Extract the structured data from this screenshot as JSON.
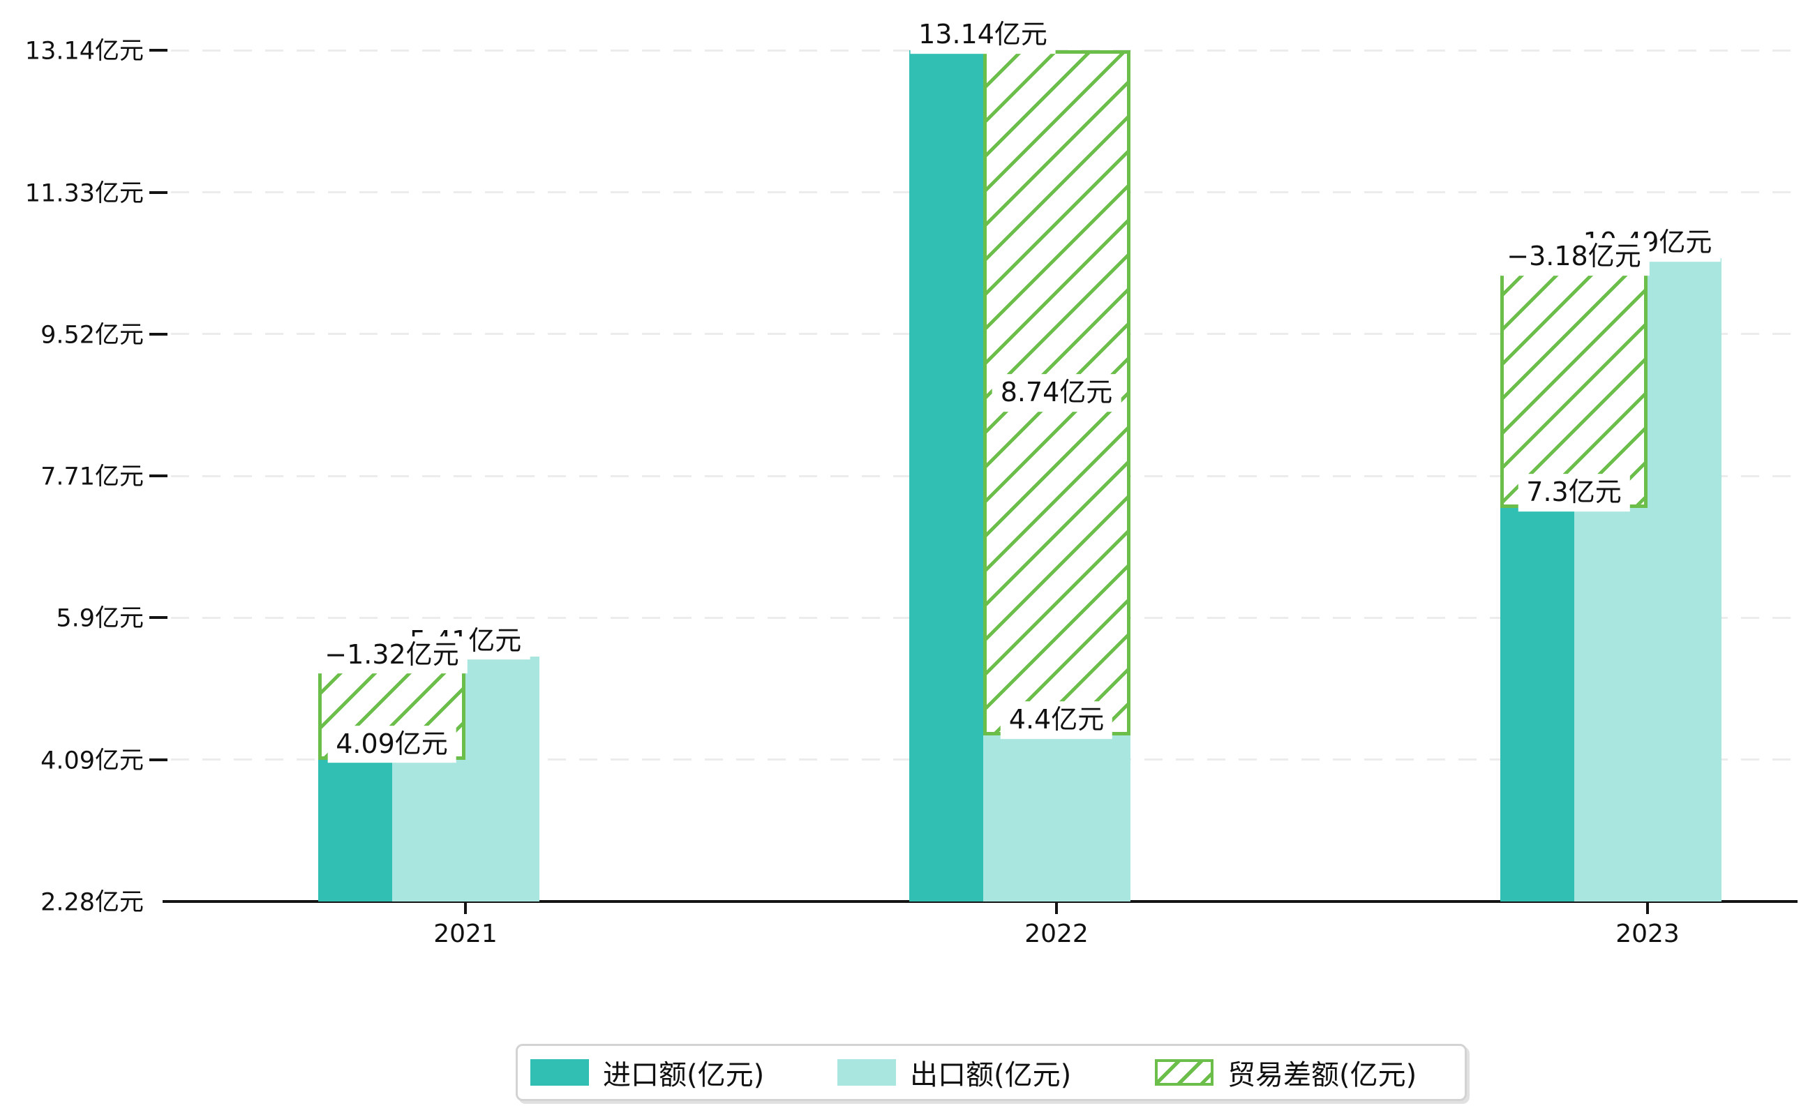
{
  "chart_data": {
    "type": "bar",
    "title": "",
    "xlabel": "",
    "ylabel": "",
    "unit": "亿元",
    "categories": [
      "2021",
      "2022",
      "2023"
    ],
    "series": [
      {
        "key": "import",
        "name": "进口额(亿元)",
        "values": [
          4.09,
          13.14,
          7.3
        ],
        "labels": [
          "4.09亿元",
          "13.14亿元",
          "7.3亿元"
        ],
        "color": "#31bfb3",
        "style": "solid"
      },
      {
        "key": "export",
        "name": "出口额(亿元)",
        "values": [
          5.41,
          4.4,
          10.49
        ],
        "labels": [
          "5.41亿元",
          "4.4亿元",
          "10.49亿元"
        ],
        "color": "#aae6e0",
        "style": "solid"
      },
      {
        "key": "balance",
        "name": "贸易差额(亿元)",
        "values": [
          -1.32,
          8.74,
          -3.18
        ],
        "labels": [
          "−1.32亿元",
          "8.74亿元",
          "−3.18亿元"
        ],
        "color": "#6cbe4a",
        "style": "hatched"
      }
    ],
    "y_ticks": [
      2.28,
      4.09,
      5.9,
      7.71,
      9.52,
      11.33,
      13.14
    ],
    "y_tick_labels": [
      "2.28亿元",
      "4.09亿元",
      "5.9亿元",
      "7.71亿元",
      "9.52亿元",
      "11.33亿元",
      "13.14亿元"
    ],
    "ylim": [
      2.28,
      13.14
    ],
    "grid": "horizontal-dashed",
    "legend_position": "bottom",
    "colors": {
      "axis": "#141414",
      "grid": "#ececec",
      "text": "#111111",
      "label_background": "#ffffff"
    }
  }
}
